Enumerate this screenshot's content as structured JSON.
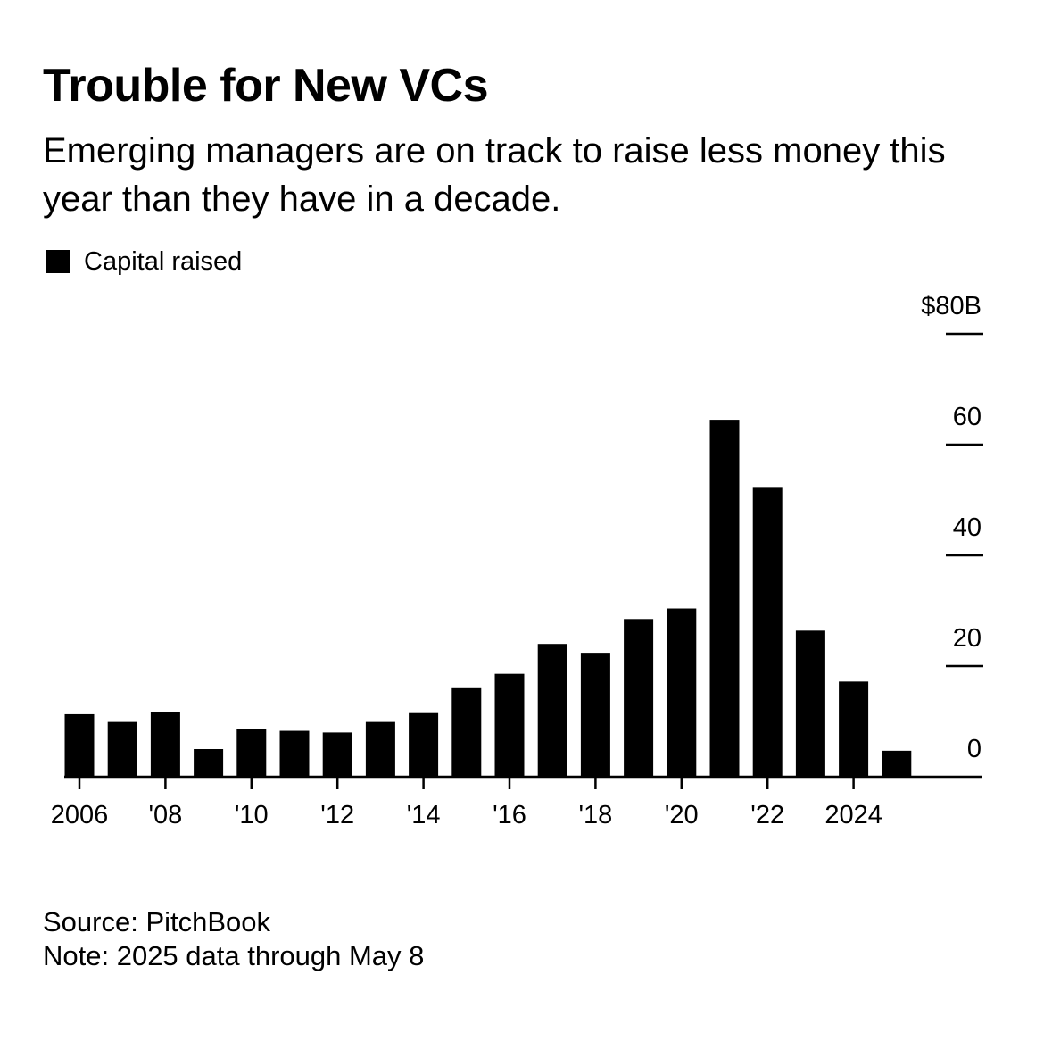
{
  "title": "Trouble for New VCs",
  "subtitle": "Emerging managers are on track to raise less money this year than they have in a decade.",
  "legend": {
    "label": "Capital raised",
    "color": "#000000"
  },
  "chart_data": {
    "type": "bar",
    "title": "Trouble for New VCs",
    "subtitle": "Emerging managers are on track to raise less money this year than they have in a decade.",
    "xlabel": "",
    "ylabel": "",
    "categories": [
      "2006",
      "2007",
      "2008",
      "2009",
      "2010",
      "2011",
      "2012",
      "2013",
      "2014",
      "2015",
      "2016",
      "2017",
      "2018",
      "2019",
      "2020",
      "2021",
      "2022",
      "2023",
      "2024",
      "2025"
    ],
    "series": [
      {
        "name": "Capital raised",
        "color": "#000000",
        "values": [
          11.3,
          9.9,
          11.7,
          5.0,
          8.7,
          8.3,
          8.0,
          9.9,
          11.5,
          16.0,
          18.6,
          24.0,
          22.4,
          28.5,
          30.4,
          64.5,
          52.2,
          26.4,
          17.2,
          4.7
        ]
      }
    ],
    "x_tick_labels": [
      "2006",
      "'08",
      "'10",
      "'12",
      "'14",
      "'16",
      "'18",
      "'20",
      "'22",
      "2024"
    ],
    "y_ticks": [
      0,
      20,
      40,
      60,
      80
    ],
    "y_tick_labels": [
      "0",
      "20",
      "40",
      "60",
      "$80B"
    ],
    "ylim": [
      0,
      80
    ],
    "y_axis_position": "right",
    "grid": false,
    "legend_position": "top-left"
  },
  "footer": {
    "source": "Source: PitchBook",
    "note": "Note: 2025 data through May 8"
  }
}
